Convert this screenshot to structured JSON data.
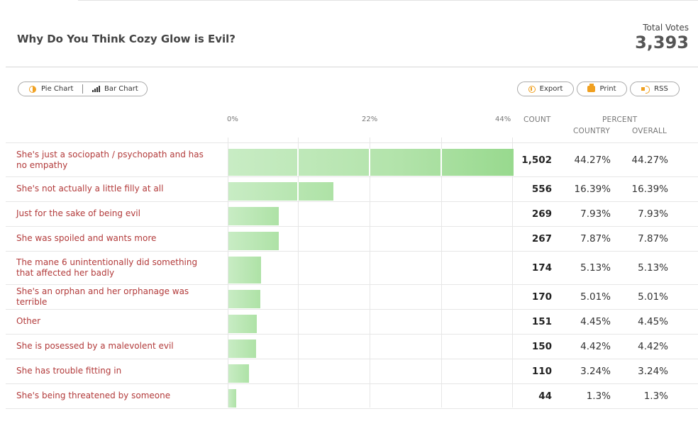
{
  "poll": {
    "title": "Why Do You Think Cozy Glow is Evil?",
    "total_votes_label": "Total Votes",
    "total_votes": "3,393"
  },
  "toolbar": {
    "pie_chart_label": "Pie Chart",
    "bar_chart_label": "Bar Chart",
    "export_label": "Export",
    "print_label": "Print",
    "rss_label": "RSS"
  },
  "icons": {
    "pie": "pie-chart-icon",
    "bar": "bar-chart-icon",
    "export": "export-icon",
    "print": "printer-icon",
    "rss": "rss-icon"
  },
  "colors": {
    "accent": "#f0a020",
    "label": "#b23a3a",
    "bar_light": "#c8ecc4",
    "bar_dark": "#98d98e"
  },
  "columns": {
    "count": "COUNT",
    "percent": "PERCENT",
    "country": "COUNTRY",
    "overall": "OVERALL"
  },
  "chart_data": {
    "type": "bar",
    "orientation": "horizontal",
    "x_ticks": [
      "0%",
      "22%",
      "44%"
    ],
    "xlim": [
      0,
      44
    ],
    "grid": true,
    "categories": [
      "She's just a sociopath / psychopath and has no empathy",
      "She's not actually a little filly at all",
      "Just for the sake of being evil",
      "She was spoiled and wants more",
      "The mane 6 unintentionally did something that affected her badly",
      "She's an orphan and her orphanage was terrible",
      "Other",
      "She is posessed by a malevolent evil",
      "She has trouble fitting in",
      "She's being threatened by someone"
    ],
    "counts": [
      "1,502",
      "556",
      "269",
      "267",
      "174",
      "170",
      "151",
      "150",
      "110",
      "44"
    ],
    "values": [
      44.27,
      16.39,
      7.93,
      7.87,
      5.13,
      5.01,
      4.45,
      4.42,
      3.24,
      1.3
    ],
    "percent_country": [
      "44.27%",
      "16.39%",
      "7.93%",
      "7.87%",
      "5.13%",
      "5.01%",
      "4.45%",
      "4.42%",
      "3.24%",
      "1.3%"
    ],
    "percent_overall": [
      "44.27%",
      "16.39%",
      "7.93%",
      "7.87%",
      "5.13%",
      "5.01%",
      "4.45%",
      "4.42%",
      "3.24%",
      "1.3%"
    ]
  }
}
